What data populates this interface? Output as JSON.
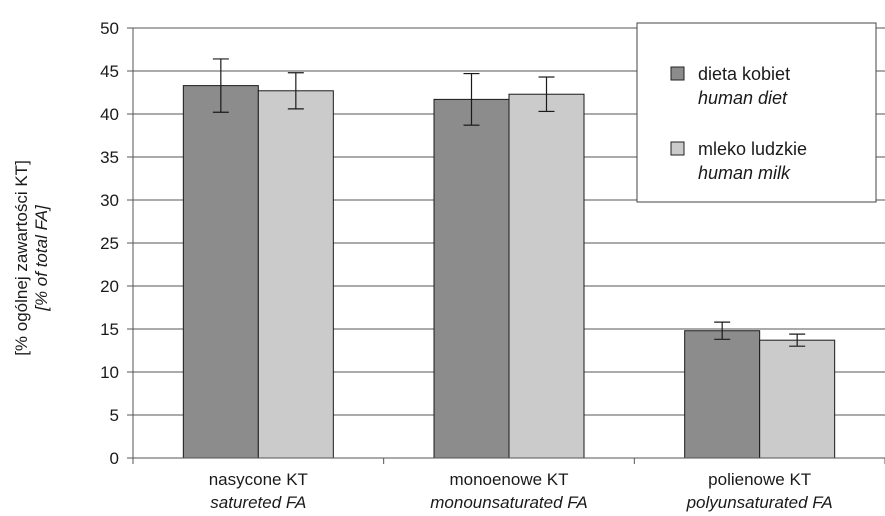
{
  "chart_data": {
    "type": "bar",
    "ylabel": "[% ogólnej zawartości KT]",
    "ylabel_en": "[% of total FA]",
    "ylim": [
      0,
      50
    ],
    "yticks": [
      0,
      5,
      10,
      15,
      20,
      25,
      30,
      35,
      40,
      45,
      50
    ],
    "grid": true,
    "legend_position": "top-right",
    "categories": [
      {
        "label": "nasycone KT",
        "label_en": "satureted FA"
      },
      {
        "label": "monoenowe KT",
        "label_en": "monounsaturated FA"
      },
      {
        "label": "polienowe KT",
        "label_en": "polyunsaturated FA"
      }
    ],
    "series": [
      {
        "name": "dieta kobiet",
        "name_en": "human diet",
        "color": "#8c8c8c",
        "values": [
          43.3,
          41.7,
          14.8
        ],
        "errors": [
          3.1,
          3.0,
          1.0
        ]
      },
      {
        "name": "mleko ludzkie",
        "name_en": "human milk",
        "color": "#cbcbcb",
        "values": [
          42.7,
          42.3,
          13.7
        ],
        "errors": [
          2.1,
          2.0,
          0.7
        ]
      }
    ]
  }
}
